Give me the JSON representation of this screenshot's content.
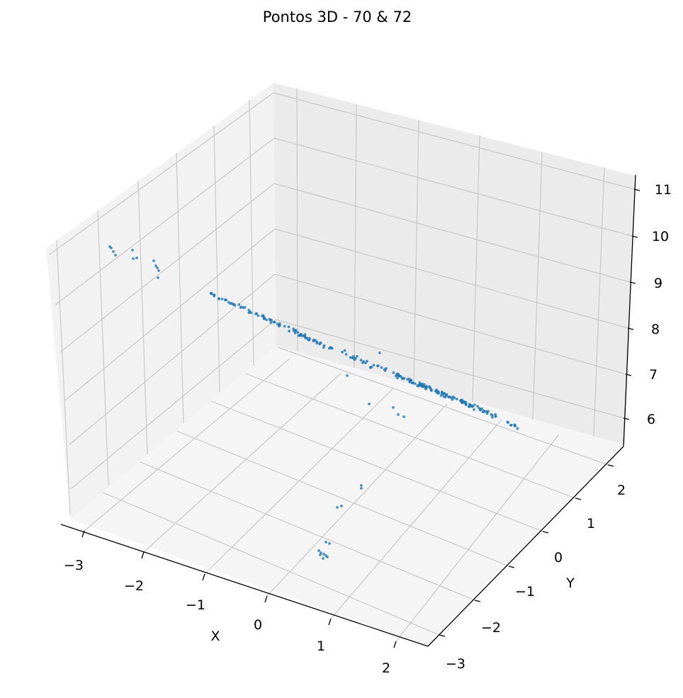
{
  "chart_data": {
    "type": "scatter",
    "projection": "3d",
    "title": "Pontos 3D - 70 & 72",
    "xlabel": "X",
    "ylabel": "Y",
    "zlabel": "",
    "xticks": [
      "−3",
      "−2",
      "−1",
      "0",
      "1",
      "2"
    ],
    "yticks": [
      "−3",
      "−2",
      "−1",
      "0",
      "1",
      "2"
    ],
    "zticks": [
      "6",
      "7",
      "8",
      "9",
      "10",
      "11"
    ],
    "xlim": [
      -3.3,
      2.4
    ],
    "ylim": [
      -3.3,
      2.6
    ],
    "zlim": [
      5.5,
      11.2
    ],
    "grid": true,
    "marker_color": "#1f77b4",
    "marker": "small dots",
    "point_count_estimate": 330,
    "clusters": [
      {
        "description": "main diagonal band",
        "x_range": [
          -2.2,
          1.8
        ],
        "y_range": [
          -0.2,
          2.0
        ],
        "z_range": [
          6.0,
          8.5
        ]
      },
      {
        "description": "upper-left group",
        "x_range": [
          -3.2,
          -2.6
        ],
        "y_range": [
          -0.5,
          0.5
        ],
        "z_range": [
          9.0,
          10.5
        ]
      },
      {
        "description": "lower group",
        "x_range": [
          0.0,
          0.6
        ],
        "y_range": [
          -2.8,
          -1.5
        ],
        "z_range": [
          5.6,
          6.5
        ]
      }
    ]
  }
}
